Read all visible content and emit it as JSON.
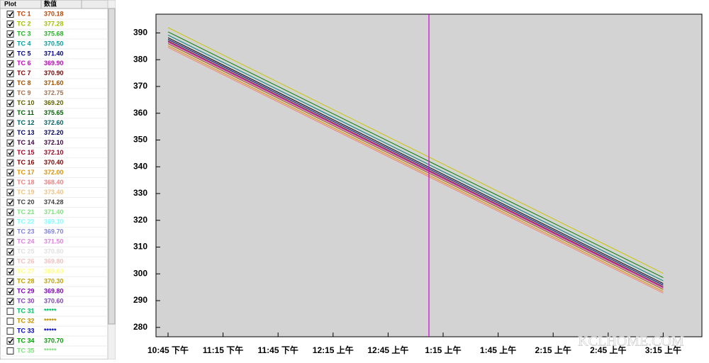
{
  "panel": {
    "headers": [
      "Plot",
      "数值"
    ],
    "rows": [
      {
        "label": "TC 1",
        "value": "370.18",
        "color": "#c04000",
        "checked": true
      },
      {
        "label": "TC 2",
        "value": "377.28",
        "color": "#a0c000",
        "checked": true
      },
      {
        "label": "TC 3",
        "value": "375.68",
        "color": "#20b020",
        "checked": true
      },
      {
        "label": "TC 4",
        "value": "370.50",
        "color": "#00a0a0",
        "checked": true
      },
      {
        "label": "TC 5",
        "value": "371.40",
        "color": "#000080",
        "checked": true
      },
      {
        "label": "TC 6",
        "value": "369.90",
        "color": "#c000c0",
        "checked": true
      },
      {
        "label": "TC 7",
        "value": "370.90",
        "color": "#800000",
        "checked": true
      },
      {
        "label": "TC 8",
        "value": "371.60",
        "color": "#a05000",
        "checked": true
      },
      {
        "label": "TC 9",
        "value": "372.75",
        "color": "#a07050",
        "checked": true
      },
      {
        "label": "TC 10",
        "value": "369.20",
        "color": "#606000",
        "checked": true
      },
      {
        "label": "TC 11",
        "value": "375.65",
        "color": "#006000",
        "checked": true
      },
      {
        "label": "TC 12",
        "value": "372.60",
        "color": "#006060",
        "checked": true
      },
      {
        "label": "TC 13",
        "value": "372.20",
        "color": "#000060",
        "checked": true
      },
      {
        "label": "TC 14",
        "value": "372.10",
        "color": "#400040",
        "checked": true
      },
      {
        "label": "TC 15",
        "value": "372.10",
        "color": "#a00020",
        "checked": true
      },
      {
        "label": "TC 16",
        "value": "370.40",
        "color": "#800000",
        "checked": true
      },
      {
        "label": "TC 17",
        "value": "372.00",
        "color": "#e09000",
        "checked": true
      },
      {
        "label": "TC 18",
        "value": "368.40",
        "color": "#f08080",
        "checked": true
      },
      {
        "label": "TC 19",
        "value": "373.40",
        "color": "#f0c080",
        "checked": true
      },
      {
        "label": "TC 20",
        "value": "374.28",
        "color": "#404040",
        "checked": true
      },
      {
        "label": "TC 21",
        "value": "371.40",
        "color": "#80e080",
        "checked": true
      },
      {
        "label": "TC 22",
        "value": "369.10",
        "color": "#80ffff",
        "checked": true
      },
      {
        "label": "TC 23",
        "value": "369.70",
        "color": "#8080e0",
        "checked": true
      },
      {
        "label": "TC 24",
        "value": "371.50",
        "color": "#e080e0",
        "checked": true
      },
      {
        "label": "TC 25",
        "value": "370.80",
        "color": "#e0e0e0",
        "checked": true
      },
      {
        "label": "TC 26",
        "value": "369.80",
        "color": "#f0c0c0",
        "checked": true
      },
      {
        "label": "TC 27",
        "value": "369.60",
        "color": "#ffff80",
        "checked": true
      },
      {
        "label": "TC 28",
        "value": "370.30",
        "color": "#c0a000",
        "checked": true
      },
      {
        "label": "TC 29",
        "value": "369.80",
        "color": "#8000c0",
        "checked": true
      },
      {
        "label": "TC 30",
        "value": "370.60",
        "color": "#8040c0",
        "checked": true
      },
      {
        "label": "TC 31",
        "value": "*****",
        "color": "#00c060",
        "checked": false
      },
      {
        "label": "TC 32",
        "value": "*****",
        "color": "#c09000",
        "checked": false
      },
      {
        "label": "TC 33",
        "value": "*****",
        "color": "#0000c0",
        "checked": false
      },
      {
        "label": "TC 34",
        "value": "370.70",
        "color": "#00a000",
        "checked": true
      },
      {
        "label": "TC 35",
        "value": "*****",
        "color": "#80e080",
        "checked": false
      }
    ]
  },
  "chart_data": {
    "type": "line",
    "x": [
      "10:45 下午",
      "11:15 下午",
      "11:45 下午",
      "12:15 上午",
      "12:45 上午",
      "1:15 上午",
      "1:45 上午",
      "2:15 上午",
      "2:45 上午",
      "3:15 上午"
    ],
    "ylim": [
      276.5,
      397
    ],
    "yticks": [
      280,
      290,
      300,
      310,
      320,
      330,
      340,
      350,
      360,
      370,
      380,
      390
    ],
    "series": [
      {
        "color": "#c8c800",
        "values": [
          392,
          381.8,
          371.6,
          361.4,
          351.2,
          341,
          330.8,
          320.6,
          310.4,
          300.2
        ]
      },
      {
        "color": "#008000",
        "values": [
          390.4,
          380.2,
          370,
          359.8,
          349.6,
          339.4,
          329.2,
          319,
          308.8,
          298.6
        ]
      },
      {
        "color": "#008080",
        "values": [
          389.2,
          379,
          368.8,
          358.6,
          348.4,
          338.2,
          328,
          317.8,
          307.6,
          297.4
        ]
      },
      {
        "color": "#000000",
        "values": [
          388.2,
          378,
          367.8,
          357.6,
          347.4,
          337.2,
          327,
          316.8,
          306.6,
          296.4
        ]
      },
      {
        "color": "#000080",
        "values": [
          387.6,
          377.4,
          367.2,
          357,
          346.8,
          336.6,
          326.4,
          316.2,
          306,
          295.8
        ]
      },
      {
        "color": "#800000",
        "values": [
          387,
          376.8,
          366.6,
          356.4,
          346.2,
          336,
          325.8,
          315.6,
          305.4,
          295.2
        ]
      },
      {
        "color": "#c000c0",
        "values": [
          386.6,
          376.4,
          366.2,
          356,
          345.8,
          335.6,
          325.4,
          315.2,
          305,
          294.8
        ]
      },
      {
        "color": "#a05000",
        "values": [
          386,
          375.8,
          365.6,
          355.4,
          345.2,
          335,
          324.8,
          314.6,
          304.4,
          294.2
        ]
      },
      {
        "color": "#e09000",
        "values": [
          385.2,
          375,
          364.8,
          354.6,
          344.4,
          334.2,
          324,
          313.8,
          303.6,
          293.4
        ]
      },
      {
        "color": "#f08080",
        "values": [
          384.6,
          374.4,
          364.2,
          354,
          343.8,
          333.6,
          323.4,
          313.2,
          303,
          292.8
        ]
      }
    ]
  },
  "watermark": "KCLHOME.COM"
}
